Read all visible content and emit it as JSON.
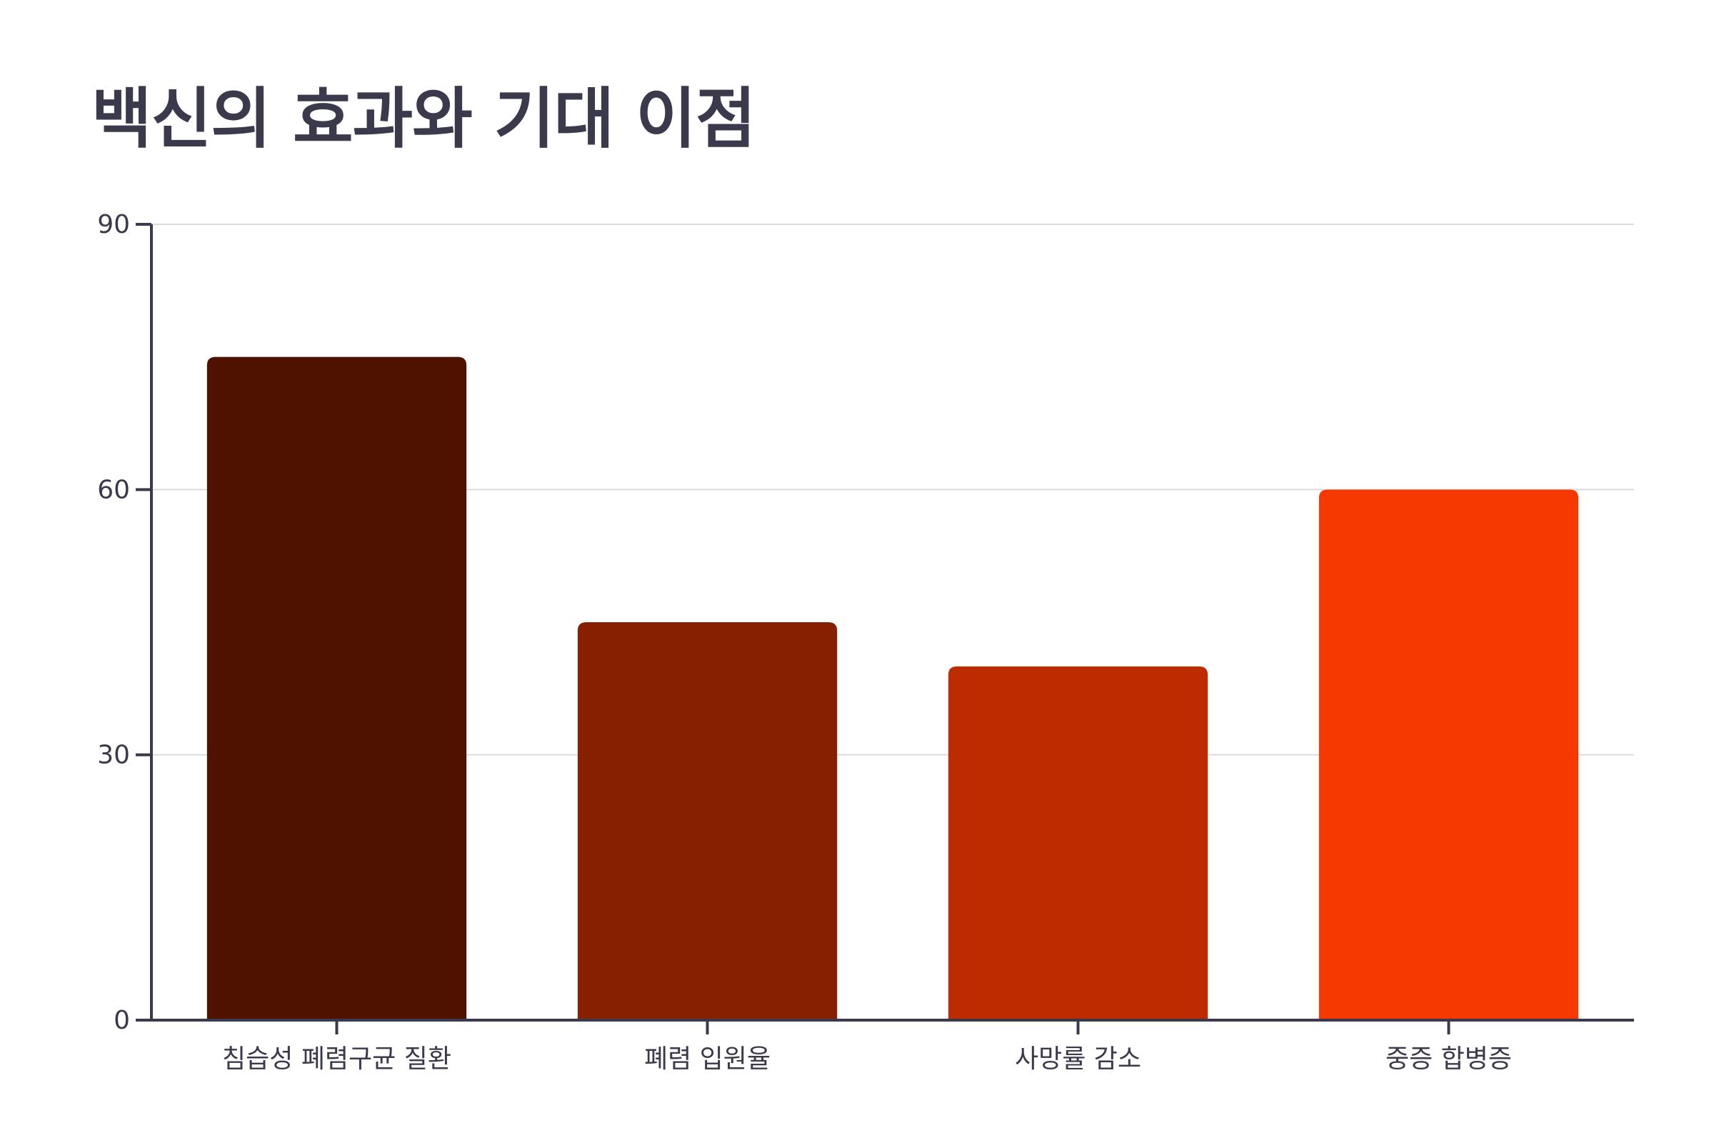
{
  "chart_data": {
    "type": "bar",
    "title": "백신의 효과와 기대 이점",
    "xlabel": "",
    "ylabel": "",
    "categories": [
      "침습성 폐렴구균 질환",
      "폐렴 입원율",
      "사망률 감소",
      "중증 합병증"
    ],
    "values": [
      75,
      45,
      40,
      60
    ],
    "colors": [
      "#4f1200",
      "#862000",
      "#bd2b00",
      "#f53900"
    ],
    "ylim": [
      0,
      90
    ],
    "yticks": [
      0,
      30,
      60,
      90
    ],
    "grid": true,
    "legend": "none",
    "axis_color": "#3a3a4c",
    "grid_color": "#dcdcdc"
  }
}
